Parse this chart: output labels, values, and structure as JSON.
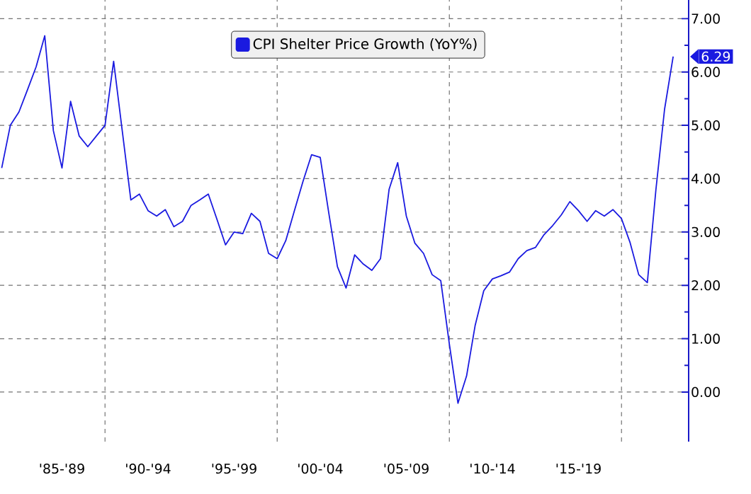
{
  "chart_data": {
    "type": "line",
    "legend": "top",
    "grid": true,
    "ylim": [
      -0.93,
      7.35
    ],
    "categories": [
      null,
      null,
      null,
      null,
      null,
      null,
      null,
      "'85-'89",
      null,
      null,
      null,
      null,
      null,
      null,
      null,
      null,
      null,
      "'90-'94",
      null,
      null,
      null,
      null,
      null,
      null,
      null,
      null,
      null,
      "'95-'99",
      null,
      null,
      null,
      null,
      null,
      null,
      null,
      null,
      null,
      "'00-'04",
      null,
      null,
      null,
      null,
      null,
      null,
      null,
      null,
      null,
      "'05-'09",
      null,
      null,
      null,
      null,
      null,
      null,
      null,
      null,
      null,
      "'10-'14",
      null,
      null,
      null,
      null,
      null,
      null,
      null,
      null,
      null,
      "'15-'19",
      null,
      null,
      null,
      null,
      null,
      null,
      null,
      null,
      null,
      null,
      null
    ],
    "yticks": [
      {
        "value": 0,
        "label": "0.00"
      },
      {
        "value": 1,
        "label": "1.00"
      },
      {
        "value": 2,
        "label": "2.00"
      },
      {
        "value": 3,
        "label": "3.00"
      },
      {
        "value": 4,
        "label": "4.00"
      },
      {
        "value": 5,
        "label": "5.00"
      },
      {
        "value": 6,
        "label": "6.00"
      },
      {
        "value": 7,
        "label": "7.00"
      }
    ],
    "annotations": [
      "6.29"
    ],
    "series": [
      {
        "name": "CPI Shelter Price Growth (YoY%)",
        "color": "#1a1ae0",
        "values": [
          4.2,
          5.0,
          5.25,
          5.67,
          6.1,
          6.68,
          4.9,
          4.2,
          5.45,
          4.8,
          4.6,
          4.8,
          5.0,
          6.2,
          4.9,
          3.6,
          3.71,
          3.4,
          3.3,
          3.42,
          3.1,
          3.2,
          3.5,
          3.6,
          3.71,
          3.24,
          2.76,
          3.0,
          2.97,
          3.35,
          3.2,
          2.6,
          2.5,
          2.84,
          3.4,
          3.95,
          4.45,
          4.4,
          3.35,
          2.35,
          1.95,
          2.57,
          2.4,
          2.28,
          2.5,
          3.8,
          4.3,
          3.3,
          2.79,
          2.6,
          2.2,
          2.09,
          0.9,
          -0.21,
          0.3,
          1.25,
          1.9,
          2.12,
          2.18,
          2.25,
          2.5,
          2.65,
          2.71,
          2.95,
          3.12,
          3.32,
          3.57,
          3.4,
          3.2,
          3.4,
          3.3,
          3.42,
          3.25,
          2.8,
          2.2,
          2.05,
          3.8,
          5.3,
          6.29
        ]
      }
    ]
  }
}
